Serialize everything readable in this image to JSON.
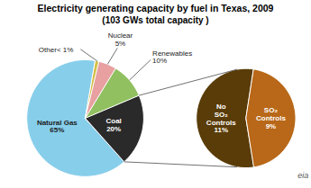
{
  "chart_data": [
    {
      "type": "pie",
      "title": "Electricity generating capacity by fuel in Texas, 2009",
      "subtitle": "(103 GWs total capacity )",
      "categories": [
        "Natural Gas\n65%",
        "Coal\n20%",
        "Renewables\n10%",
        "Nuclear\n5%",
        "Other< 1%"
      ],
      "values": [
        65,
        20,
        10,
        5,
        1
      ],
      "colors": [
        "#87CEEB",
        "#2a2a2a",
        "#90C060",
        "#E8A0A0",
        "#D4C048"
      ],
      "data_labels": true,
      "annotations": [
        "eia"
      ]
    },
    {
      "type": "pie",
      "categories": [
        "No\nSO₂\nControls\n11%",
        "SO₂\nControls\n9%"
      ],
      "values": [
        55,
        45
      ],
      "colors": [
        "#5a3c08",
        "#b86818"
      ],
      "data_labels": true
    }
  ]
}
